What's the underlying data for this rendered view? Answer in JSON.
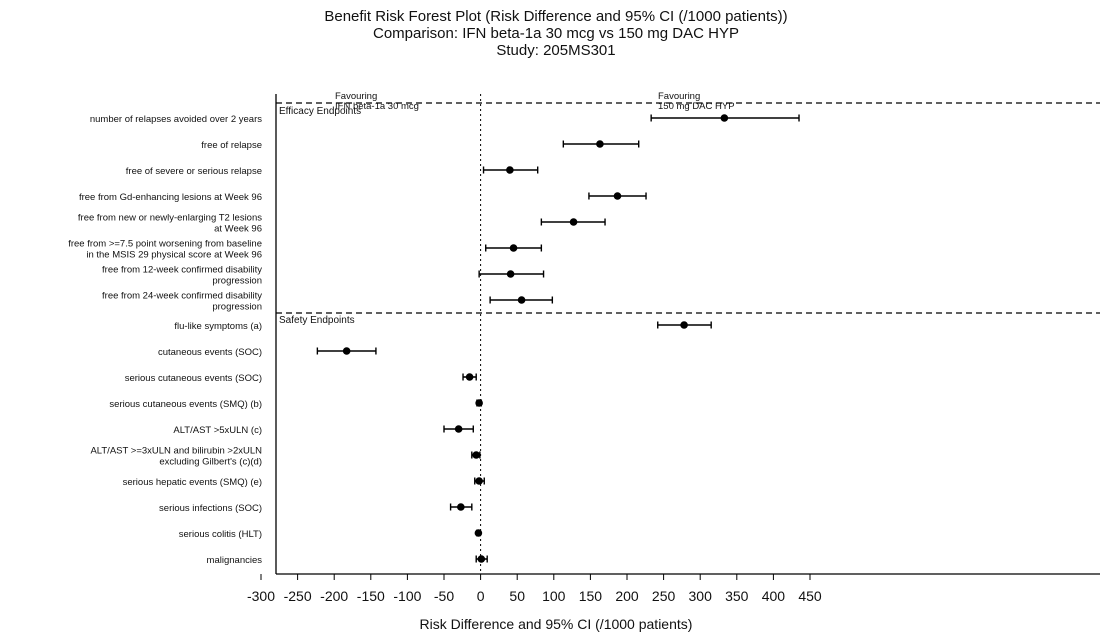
{
  "chart_data": {
    "type": "forest",
    "title": "Benefit Risk Forest Plot (Risk Difference and 95% CI (/1000 patients))",
    "subtitle": "Comparison: IFN beta-1a 30 mcg vs 150 mg DAC HYP",
    "study": "Study: 205MS301",
    "xlabel": "Risk Difference and 95% CI (/1000 patients)",
    "xlim": [
      -300,
      450
    ],
    "xticks": [
      "-300",
      "-250",
      "-200",
      "-150",
      "-100",
      "-50",
      "0",
      "50",
      "100",
      "150",
      "200",
      "250",
      "300",
      "350",
      "400",
      "450"
    ],
    "reference_line": 0,
    "favour_left": [
      "Favouring",
      "IFN beta-1a 30 mcg"
    ],
    "favour_right": [
      "Favouring",
      "150 mg DAC HYP"
    ],
    "sections": [
      {
        "label": "Efficacy Endpoints",
        "rows": [
          {
            "label": [
              "number of relapses avoided over 2 years"
            ],
            "est": 333,
            "lo": 233,
            "hi": 435
          },
          {
            "label": [
              "free of relapse"
            ],
            "est": 163,
            "lo": 113,
            "hi": 216
          },
          {
            "label": [
              "free of severe or serious relapse"
            ],
            "est": 40,
            "lo": 4,
            "hi": 78
          },
          {
            "label": [
              "free from Gd-enhancing lesions at Week 96"
            ],
            "est": 187,
            "lo": 148,
            "hi": 226
          },
          {
            "label": [
              "free from new or newly-enlarging T2 lesions",
              "at Week 96"
            ],
            "est": 127,
            "lo": 83,
            "hi": 170
          },
          {
            "label": [
              "free from >=7.5 point worsening from baseline",
              "in the MSIS 29 physical score at Week 96"
            ],
            "est": 45,
            "lo": 7,
            "hi": 83
          },
          {
            "label": [
              "free from 12-week confirmed disability",
              "progression"
            ],
            "est": 41,
            "lo": -2,
            "hi": 86
          },
          {
            "label": [
              "free from 24-week confirmed disability",
              "progression"
            ],
            "est": 56,
            "lo": 13,
            "hi": 98
          }
        ]
      },
      {
        "label": "Safety Endpoints",
        "rows": [
          {
            "label": [
              "flu-like symptoms (a)"
            ],
            "est": 278,
            "lo": 242,
            "hi": 315
          },
          {
            "label": [
              "cutaneous events (SOC)"
            ],
            "est": -183,
            "lo": -223,
            "hi": -143
          },
          {
            "label": [
              "serious cutaneous events (SOC)"
            ],
            "est": -15,
            "lo": -24,
            "hi": -6
          },
          {
            "label": [
              "serious cutaneous events (SMQ) (b)"
            ],
            "est": -2,
            "lo": -5,
            "hi": 1
          },
          {
            "label": [
              "ALT/AST >5xULN (c)"
            ],
            "est": -30,
            "lo": -50,
            "hi": -10
          },
          {
            "label": [
              "ALT/AST >=3xULN and bilirubin >2xULN",
              "excluding Gilbert's (c)(d)"
            ],
            "est": -6,
            "lo": -12,
            "hi": -1
          },
          {
            "label": [
              "serious hepatic events (SMQ) (e)"
            ],
            "est": -2,
            "lo": -8,
            "hi": 5
          },
          {
            "label": [
              "serious infections (SOC)"
            ],
            "est": -27,
            "lo": -41,
            "hi": -12
          },
          {
            "label": [
              "serious colitis (HLT)"
            ],
            "est": -3,
            "lo": -5,
            "hi": -1
          },
          {
            "label": [
              "malignancies"
            ],
            "est": 1,
            "lo": -6,
            "hi": 9
          }
        ]
      }
    ]
  }
}
